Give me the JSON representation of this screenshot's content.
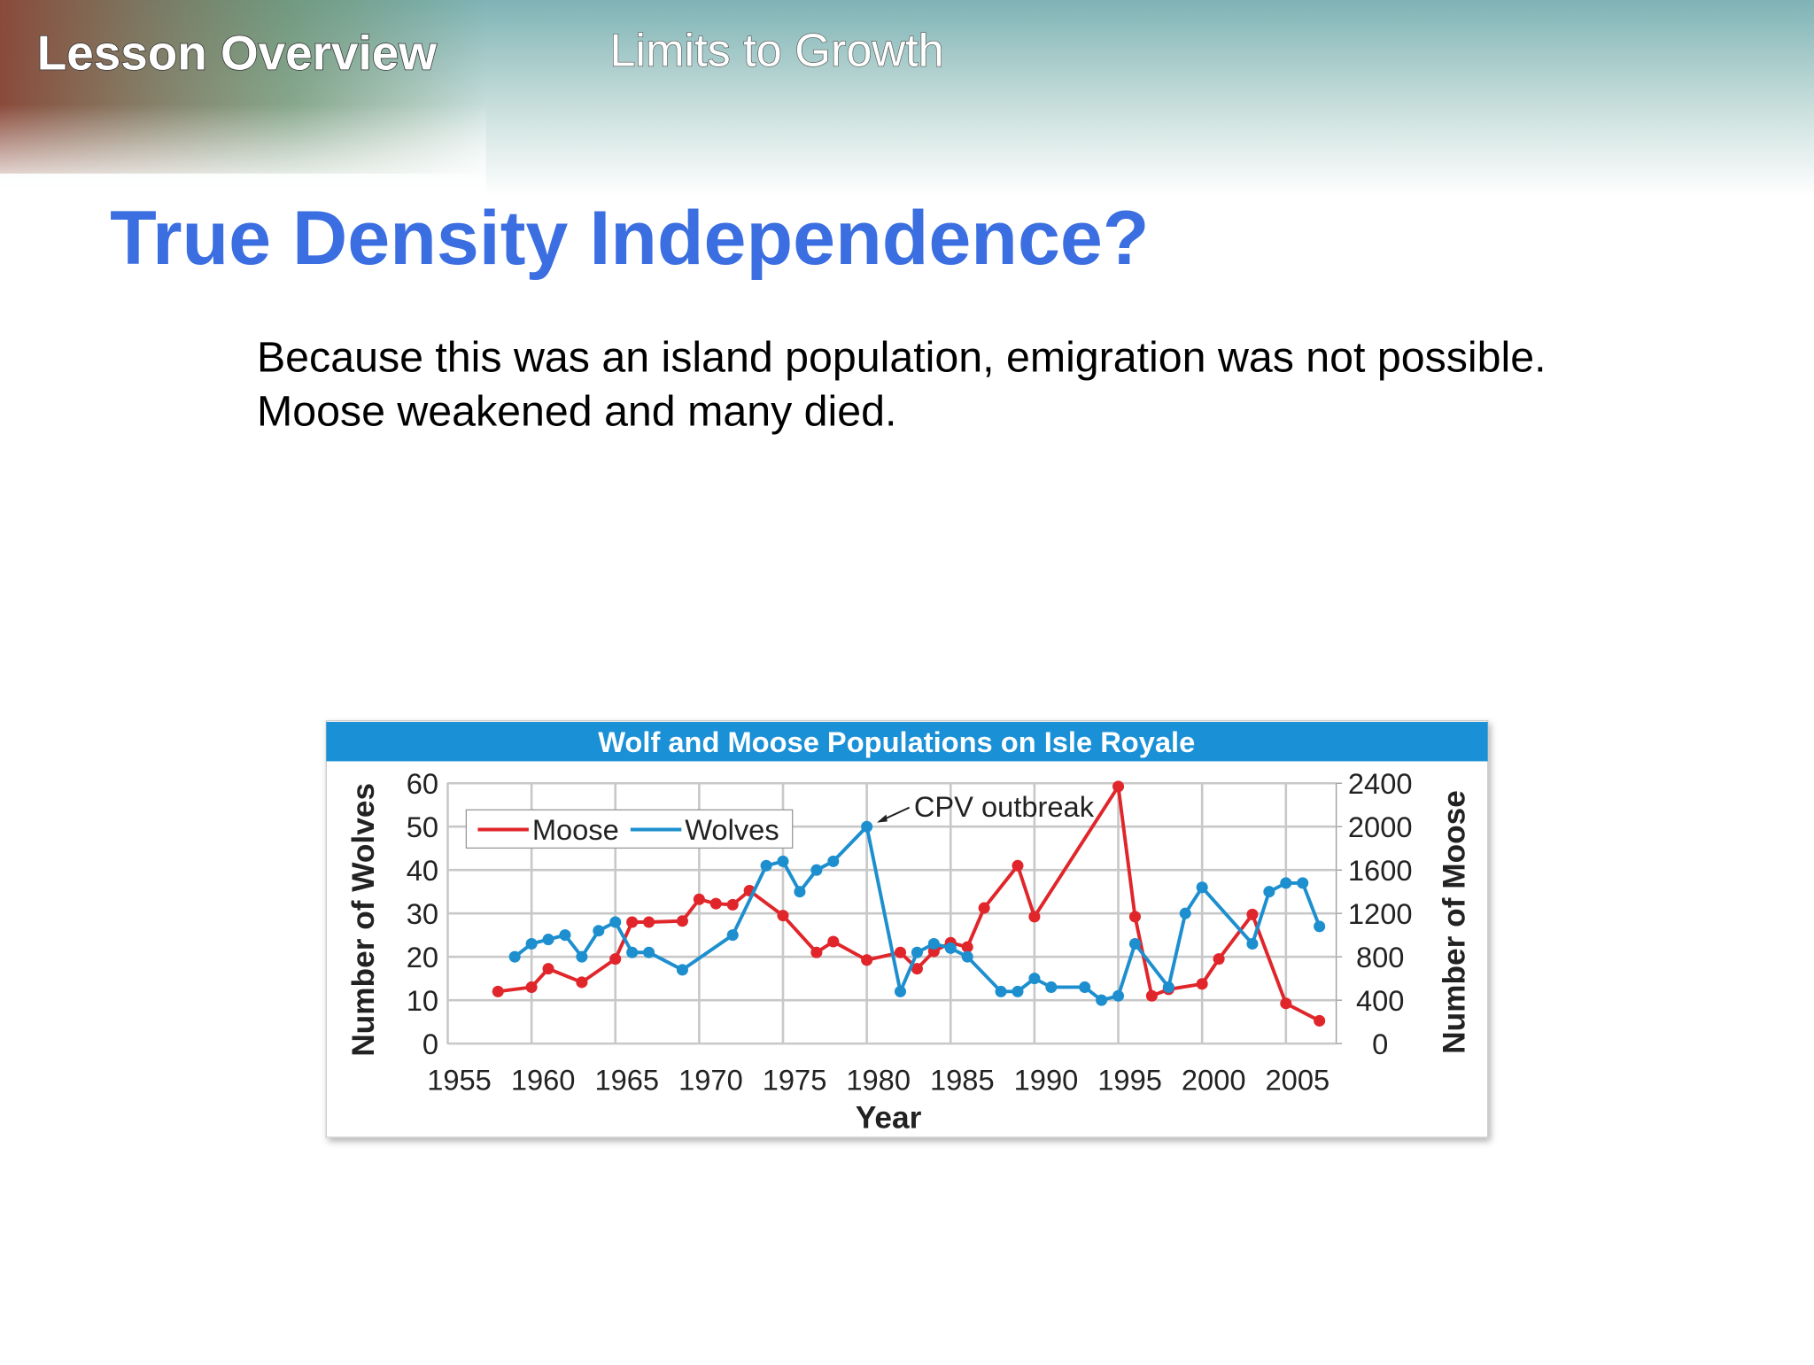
{
  "header": {
    "lesson": "Lesson Overview",
    "topic": "Limits to Growth"
  },
  "title": "True Density Independence?",
  "body": [
    "Because this was an island population, emigration was not possible.",
    "Moose weakened and many died."
  ],
  "chart_data": {
    "type": "line",
    "title": "Wolf and Moose Populations on Isle Royale",
    "x_label": "Year",
    "y_label": "Number of Wolves",
    "y2_label": "Number of Moose",
    "annotation": "CPV outbreak",
    "xlim": [
      1955,
      2008
    ],
    "xticks": [
      1955,
      1960,
      1965,
      1970,
      1975,
      1980,
      1985,
      1990,
      1995,
      2000,
      2005
    ],
    "ylim": [
      0,
      60
    ],
    "yticks": [
      0,
      10,
      20,
      30,
      40,
      50,
      60
    ],
    "y2lim": [
      0,
      2400
    ],
    "y2ticks": [
      0,
      400,
      800,
      1200,
      1600,
      2000,
      2400
    ],
    "grid": true,
    "legend": "upper left",
    "series": [
      {
        "name": "Moose",
        "color": "#e0262b",
        "axis": "y2",
        "x": [
          1958,
          1960,
          1961,
          1963,
          1965,
          1966,
          1967,
          1969,
          1970,
          1971,
          1972,
          1973,
          1975,
          1977,
          1978,
          1980,
          1982,
          1983,
          1984,
          1985,
          1986,
          1987,
          1989,
          1990,
          1995,
          1996,
          1997,
          1998,
          2000,
          2001,
          2003,
          2005,
          2007
        ],
        "values": [
          480,
          520,
          690,
          565,
          780,
          1120,
          1120,
          1130,
          1330,
          1290,
          1280,
          1410,
          1180,
          840,
          940,
          770,
          840,
          690,
          850,
          930,
          890,
          1250,
          1640,
          1170,
          2370,
          1170,
          440,
          500,
          550,
          780,
          1190,
          370,
          210
        ]
      },
      {
        "name": "Wolves",
        "color": "#1d8fcf",
        "axis": "y",
        "x": [
          1959,
          1960,
          1961,
          1962,
          1963,
          1964,
          1965,
          1966,
          1967,
          1969,
          1972,
          1974,
          1975,
          1976,
          1977,
          1978,
          1980,
          1982,
          1983,
          1984,
          1985,
          1986,
          1988,
          1989,
          1990,
          1991,
          1993,
          1994,
          1995,
          1996,
          1998,
          1999,
          2000,
          2003,
          2004,
          2005,
          2006,
          2007
        ],
        "values": [
          20,
          23,
          24,
          25,
          20,
          26,
          28,
          21,
          21,
          17,
          25,
          41,
          42,
          35,
          40,
          42,
          50,
          12,
          21,
          23,
          22,
          20,
          12,
          12,
          15,
          13,
          13,
          10,
          11,
          23,
          13,
          30,
          36,
          23,
          35,
          37,
          37,
          27
        ]
      }
    ]
  }
}
